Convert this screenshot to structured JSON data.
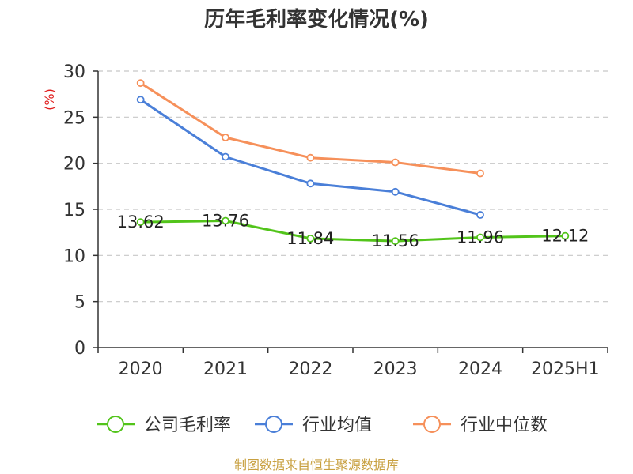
{
  "chart_data": {
    "type": "line",
    "title": "历年毛利率变化情况(%)",
    "ylabel": "(%)",
    "xlabel": "",
    "categories": [
      "2020",
      "2021",
      "2022",
      "2023",
      "2024",
      "2025H1"
    ],
    "ylim": [
      0,
      30
    ],
    "yticks": [
      0,
      5,
      10,
      15,
      20,
      25,
      30
    ],
    "grid": true,
    "legend_position": "bottom",
    "series": [
      {
        "name": "公司毛利率",
        "color": "#52c41a",
        "values": [
          13.62,
          13.76,
          11.84,
          11.56,
          11.96,
          12.12
        ],
        "labels": [
          "13.62",
          "13.76",
          "11.84",
          "11.56",
          "11.96",
          "12.12"
        ]
      },
      {
        "name": "行业均值",
        "color": "#4a7fd8",
        "values": [
          26.9,
          20.7,
          17.8,
          16.9,
          14.4,
          null
        ]
      },
      {
        "name": "行业中位数",
        "color": "#f6905a",
        "values": [
          28.7,
          22.8,
          20.6,
          20.1,
          18.9,
          null
        ]
      }
    ]
  },
  "colors": {
    "ylabel": "#e02020",
    "source": "#c8a040",
    "axis": "#333333",
    "grid": "#c8c8c8"
  },
  "source_text": "制图数据来自恒生聚源数据库"
}
